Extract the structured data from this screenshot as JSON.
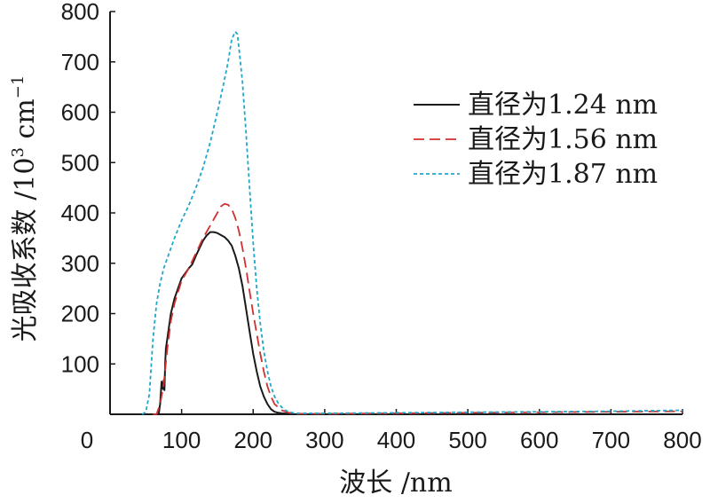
{
  "chart_data": {
    "type": "line",
    "xlabel": "波长 /nm",
    "ylabel": {
      "main": "光吸收系数 /10",
      "sup1": "3",
      "unit": " cm",
      "sup2": "−1"
    },
    "xlim": [
      0,
      800
    ],
    "ylim": [
      0,
      800
    ],
    "xticks": [
      "0",
      "100",
      "200",
      "300",
      "400",
      "500",
      "600",
      "700",
      "800"
    ],
    "yticks": [
      "100",
      "200",
      "300",
      "400",
      "500",
      "600",
      "700",
      "800"
    ],
    "grid": false,
    "legend_position": "top-right",
    "series": [
      {
        "name": "直径为1.24 nm",
        "color": "#1a1a1a",
        "dash": "solid",
        "x": [
          63,
          68,
          70,
          72,
          74,
          75,
          76,
          77,
          78,
          80,
          85,
          90,
          95,
          100,
          105,
          110,
          115,
          120,
          125,
          130,
          135,
          140,
          145,
          150,
          155,
          160,
          165,
          170,
          175,
          180,
          185,
          190,
          195,
          200,
          205,
          210,
          215,
          220,
          225,
          230,
          235,
          240,
          250,
          260,
          300,
          400,
          500,
          600,
          700,
          800
        ],
        "y": [
          0,
          0,
          20,
          65,
          50,
          68,
          48,
          100,
          130,
          150,
          200,
          230,
          250,
          270,
          280,
          290,
          298,
          315,
          330,
          345,
          355,
          362,
          362,
          360,
          356,
          352,
          345,
          335,
          315,
          290,
          255,
          210,
          165,
          120,
          85,
          55,
          35,
          20,
          10,
          5,
          3,
          2,
          1,
          0,
          0,
          0,
          0,
          0,
          0,
          0
        ]
      },
      {
        "name": "直径为1.56 nm",
        "color": "#d03030",
        "dash": "12 6",
        "x": [
          60,
          65,
          70,
          75,
          80,
          85,
          90,
          100,
          110,
          120,
          130,
          140,
          150,
          155,
          160,
          165,
          170,
          175,
          180,
          185,
          190,
          195,
          200,
          205,
          210,
          215,
          220,
          225,
          230,
          240,
          250,
          260,
          300,
          400,
          500,
          600,
          700,
          800
        ],
        "y": [
          0,
          0,
          20,
          60,
          130,
          185,
          220,
          265,
          290,
          320,
          350,
          375,
          400,
          413,
          418,
          416,
          408,
          390,
          365,
          330,
          290,
          245,
          200,
          160,
          120,
          85,
          55,
          35,
          20,
          8,
          3,
          1,
          1,
          2,
          3,
          4,
          5,
          6
        ]
      },
      {
        "name": "直径为1.87 nm",
        "color": "#1fa8c9",
        "dash": "4 3",
        "x": [
          45,
          50,
          55,
          60,
          65,
          70,
          75,
          80,
          90,
          100,
          110,
          120,
          130,
          140,
          150,
          160,
          165,
          170,
          175,
          178,
          180,
          185,
          190,
          195,
          200,
          205,
          210,
          215,
          220,
          225,
          230,
          235,
          240,
          245,
          250,
          255,
          260,
          300,
          400,
          500,
          600,
          700,
          800
        ],
        "y": [
          0,
          5,
          40,
          150,
          220,
          260,
          290,
          310,
          350,
          385,
          415,
          450,
          490,
          540,
          600,
          665,
          700,
          745,
          760,
          755,
          730,
          660,
          560,
          450,
          340,
          250,
          180,
          125,
          85,
          55,
          35,
          22,
          14,
          8,
          5,
          3,
          2,
          2,
          3,
          4,
          5,
          6,
          8
        ]
      }
    ]
  }
}
